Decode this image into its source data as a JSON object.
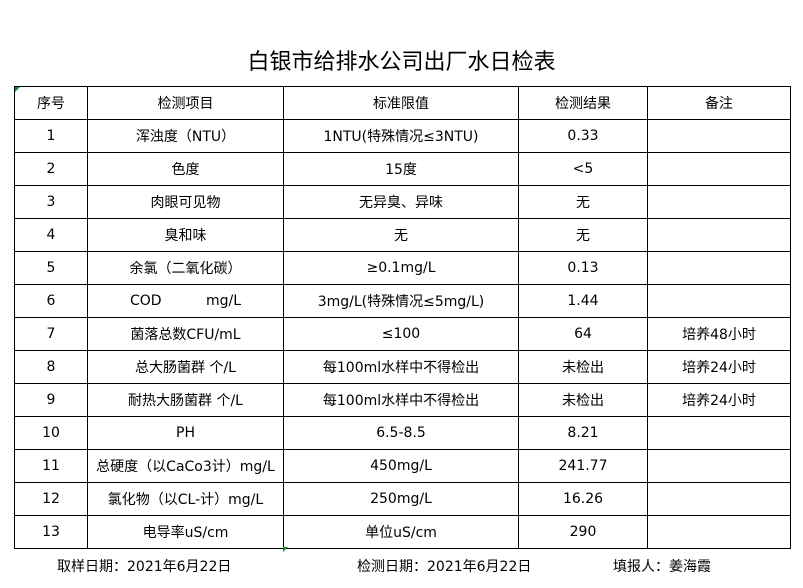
{
  "title": "白银市给排水公司出厂水日检表",
  "headers": [
    "序号",
    "检测项目",
    "标准限值",
    "检测结果",
    "备注"
  ],
  "rows": [
    [
      "1",
      "浑浊度（NTU）",
      "1NTU(特殊情况≤3NTU)",
      "0.33",
      ""
    ],
    [
      "2",
      "色度",
      "15度",
      "<5",
      ""
    ],
    [
      "3",
      "肉眼可见物",
      "无异臭、异味",
      "无",
      ""
    ],
    [
      "4",
      "臭和味",
      "无",
      "无",
      ""
    ],
    [
      "5",
      "余氯（二氧化碳）",
      "≥0.1mg/L",
      "0.13",
      ""
    ],
    [
      "6",
      "COD          mg/L",
      "3mg/L(特殊情况≤5mg/L)",
      "1.44",
      ""
    ],
    [
      "7",
      "菌落总数CFU/mL",
      "≤100",
      "64",
      "培养48小时"
    ],
    [
      "8",
      "总大肠菌群 个/L",
      "每100ml水样中不得检出",
      "未检出",
      "培养24小时"
    ],
    [
      "9",
      "耐热大肠菌群 个/L",
      "每100ml水样中不得检出",
      "未检出",
      "培养24小时"
    ],
    [
      "10",
      "PH",
      "6.5-8.5",
      "8.21",
      ""
    ],
    [
      "11",
      "总硬度（以CaCo3计）mg/L",
      "450mg/L",
      "241.77",
      ""
    ],
    [
      "12",
      "氯化物（以CL-计）mg/L",
      "250mg/L",
      "16.26",
      ""
    ],
    [
      "13",
      "电导率uS/cm",
      "单位uS/cm",
      "290",
      ""
    ]
  ],
  "footer": {
    "sample_date": "取样日期：2021年6月22日",
    "test_date": "检测日期：2021年6月22日",
    "reporter": "填报人：姜海霞"
  }
}
